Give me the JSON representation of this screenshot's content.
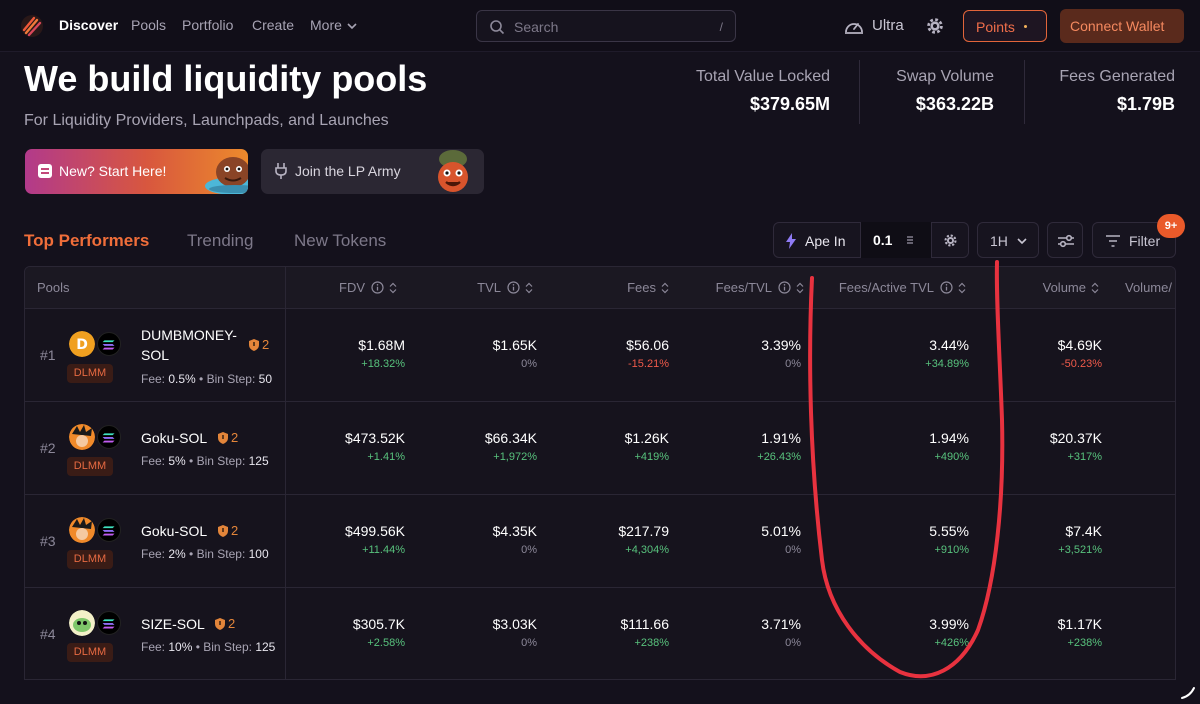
{
  "nav": {
    "items": [
      "Discover",
      "Pools",
      "Portfolio",
      "Create",
      "More"
    ],
    "search_placeholder": "Search",
    "search_shortcut": "/",
    "ultra_label": "Ultra",
    "points_label": "Points",
    "connect_label": "Connect Wallet"
  },
  "hero": {
    "title": "We build liquidity pools",
    "subtitle": "For Liquidity Providers, Launchpads, and Launches",
    "promo_start": "New? Start Here!",
    "promo_army": "Join the LP Army"
  },
  "stats": [
    {
      "label": "Total Value Locked",
      "value": "$379.65M"
    },
    {
      "label": "Swap Volume",
      "value": "$363.22B"
    },
    {
      "label": "Fees Generated",
      "value": "$1.79B"
    }
  ],
  "tabs": [
    "Top Performers",
    "Trending",
    "New Tokens"
  ],
  "controls": {
    "ape_label": "Ape In",
    "ape_amount": "0.1",
    "timeframe": "1H",
    "filter_label": "Filter",
    "filter_badge": "9+"
  },
  "table": {
    "headers": {
      "pools": "Pools",
      "fdv": "FDV",
      "tvl": "TVL",
      "fees": "Fees",
      "fees_tvl": "Fees/TVL",
      "fees_active_tvl": "Fees/Active TVL",
      "volume": "Volume",
      "volume_extra": "Volume/"
    },
    "fee_label": "Fee:",
    "bin_label": "Bin Step:",
    "type_label": "DLMM",
    "rows": [
      {
        "rank": "#1",
        "pair": "DUMBMONEY-SOL",
        "shield_count": "2",
        "fee": "0.5%",
        "bin_step": "50",
        "fdv": "$1.68M",
        "fdv_change": "+18.32%",
        "tvl": "$1.65K",
        "tvl_change": "0%",
        "fees": "$56.06",
        "fees_change": "-15.21%",
        "fees_tvl": "3.39%",
        "fees_tvl_change": "0%",
        "fees_active_tvl": "3.44%",
        "fees_active_tvl_change": "+34.89%",
        "volume": "$4.69K",
        "volume_change": "-50.23%"
      },
      {
        "rank": "#2",
        "pair": "Goku-SOL",
        "shield_count": "2",
        "fee": "5%",
        "bin_step": "125",
        "fdv": "$473.52K",
        "fdv_change": "+1.41%",
        "tvl": "$66.34K",
        "tvl_change": "+1,972%",
        "fees": "$1.26K",
        "fees_change": "+419%",
        "fees_tvl": "1.91%",
        "fees_tvl_change": "+26.43%",
        "fees_active_tvl": "1.94%",
        "fees_active_tvl_change": "+490%",
        "volume": "$20.37K",
        "volume_change": "+317%"
      },
      {
        "rank": "#3",
        "pair": "Goku-SOL",
        "shield_count": "2",
        "fee": "2%",
        "bin_step": "100",
        "fdv": "$499.56K",
        "fdv_change": "+11.44%",
        "tvl": "$4.35K",
        "tvl_change": "0%",
        "fees": "$217.79",
        "fees_change": "+4,304%",
        "fees_tvl": "5.01%",
        "fees_tvl_change": "0%",
        "fees_active_tvl": "5.55%",
        "fees_active_tvl_change": "+910%",
        "volume": "$7.4K",
        "volume_change": "+3,521%"
      },
      {
        "rank": "#4",
        "pair": "SIZE-SOL",
        "shield_count": "2",
        "fee": "10%",
        "bin_step": "125",
        "fdv": "$305.7K",
        "fdv_change": "+2.58%",
        "tvl": "$3.03K",
        "tvl_change": "0%",
        "fees": "$111.66",
        "fees_change": "+238%",
        "fees_tvl": "3.71%",
        "fees_tvl_change": "0%",
        "fees_active_tvl": "3.99%",
        "fees_active_tvl_change": "+426%",
        "volume": "$1.17K",
        "volume_change": "+238%"
      }
    ]
  },
  "colors": {
    "accent": "#f06e3a",
    "positive": "#58c27d",
    "negative": "#ef5a4a",
    "annotation": "#e8323f"
  }
}
